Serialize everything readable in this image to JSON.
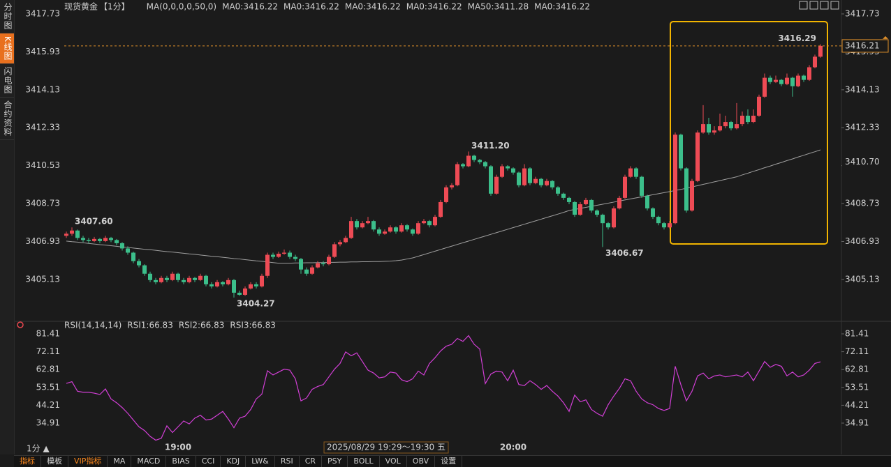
{
  "sidebar": [
    "分时图",
    "K线图",
    "闪电图",
    "合约资料"
  ],
  "toolbar": [
    "指标",
    "模板",
    "VIP指标",
    "MA",
    "MACD",
    "BIAS",
    "CCI",
    "KDJ",
    "LW&",
    "RSI",
    "CR",
    "PSY",
    "BOLL",
    "VOL",
    "OBV",
    "设置"
  ],
  "chart_data": {
    "type": "candlestick",
    "title": "现货黄金",
    "period": "【1分】",
    "indicator_header": [
      {
        "text": "MA(0,0,0,0,50,0)",
        "color": "#d8d8d8"
      },
      {
        "text": "MA0:3416.22",
        "color": "#d8d8d8"
      },
      {
        "text": "MA0:3416.22",
        "color": "#e6c619"
      },
      {
        "text": "MA0:3416.22",
        "color": "#d23fd6"
      },
      {
        "text": "MA0:3416.22",
        "color": "#35c24a"
      },
      {
        "text": "MA50:3411.28",
        "color": "#9a9a9a"
      },
      {
        "text": "MA0:3416.22",
        "color": "#e8474f"
      }
    ],
    "period_label": "1分 ▲",
    "crosshair_time": "2025/08/29 19:29～19:30 五",
    "categories": [
      null,
      null,
      null,
      null,
      null,
      null,
      null,
      null,
      null,
      null,
      null,
      null,
      null,
      null,
      null,
      null,
      null,
      null,
      null,
      null,
      "19:00",
      null,
      null,
      null,
      null,
      null,
      null,
      null,
      null,
      null,
      null,
      null,
      null,
      null,
      null,
      null,
      null,
      null,
      null,
      null,
      null,
      null,
      null,
      null,
      null,
      null,
      null,
      null,
      null,
      null,
      null,
      null,
      null,
      null,
      null,
      null,
      null,
      null,
      null,
      null,
      null,
      null,
      null,
      null,
      null,
      null,
      null,
      null,
      null,
      null,
      null,
      null,
      null,
      null,
      null,
      null,
      null,
      null,
      null,
      null,
      "20:00",
      null,
      null,
      null,
      null,
      null,
      null,
      null,
      null,
      null,
      null,
      null,
      null,
      null,
      null,
      null,
      null,
      null,
      null,
      null,
      null,
      null,
      null,
      null,
      null,
      null,
      null,
      null,
      null,
      null,
      null,
      null,
      null,
      null,
      null,
      null,
      null,
      null,
      null,
      null,
      null,
      null,
      null,
      null,
      null,
      null,
      null,
      null,
      null,
      null,
      null,
      null,
      null,
      null,
      null,
      null
    ],
    "candles": [
      [
        3407.2,
        3407.4,
        3407.1,
        3407.3
      ],
      [
        3407.3,
        3407.6,
        3407.2,
        3407.45
      ],
      [
        3407.45,
        3407.5,
        3407.0,
        3407.1
      ],
      [
        3407.1,
        3407.2,
        3406.9,
        3407.0
      ],
      [
        3407.0,
        3407.1,
        3406.85,
        3406.95
      ],
      [
        3406.95,
        3407.15,
        3406.9,
        3407.05
      ],
      [
        3407.05,
        3407.1,
        3406.85,
        3406.95
      ],
      [
        3406.95,
        3407.2,
        3406.9,
        3407.1
      ],
      [
        3407.1,
        3407.15,
        3406.9,
        3407.0
      ],
      [
        3407.0,
        3407.05,
        3406.75,
        3406.85
      ],
      [
        3406.85,
        3406.9,
        3406.5,
        3406.6
      ],
      [
        3406.6,
        3406.7,
        3406.3,
        3406.4
      ],
      [
        3406.4,
        3406.45,
        3405.9,
        3406.0
      ],
      [
        3406.0,
        3406.1,
        3405.7,
        3405.8
      ],
      [
        3405.8,
        3405.85,
        3405.3,
        3405.4
      ],
      [
        3405.4,
        3405.5,
        3405.0,
        3405.1
      ],
      [
        3405.1,
        3405.2,
        3404.9,
        3405.0
      ],
      [
        3405.0,
        3405.3,
        3404.95,
        3405.2
      ],
      [
        3405.2,
        3405.3,
        3405.0,
        3405.1
      ],
      [
        3405.1,
        3405.5,
        3405.05,
        3405.4
      ],
      [
        3405.4,
        3405.45,
        3405.0,
        3405.1
      ],
      [
        3405.1,
        3405.2,
        3404.9,
        3405.0
      ],
      [
        3405.0,
        3405.3,
        3404.95,
        3405.2
      ],
      [
        3405.2,
        3405.25,
        3405.0,
        3405.1
      ],
      [
        3405.1,
        3405.4,
        3405.05,
        3405.3
      ],
      [
        3405.3,
        3405.35,
        3404.8,
        3404.9
      ],
      [
        3404.9,
        3405.0,
        3404.7,
        3404.8
      ],
      [
        3404.8,
        3405.1,
        3404.75,
        3405.0
      ],
      [
        3405.0,
        3405.05,
        3404.8,
        3404.9
      ],
      [
        3404.9,
        3405.2,
        3404.85,
        3405.1
      ],
      [
        3405.1,
        3405.15,
        3404.27,
        3404.5
      ],
      [
        3404.5,
        3404.6,
        3404.35,
        3404.4
      ],
      [
        3404.4,
        3404.8,
        3404.35,
        3404.7
      ],
      [
        3404.7,
        3405.0,
        3404.65,
        3404.9
      ],
      [
        3404.9,
        3405.0,
        3404.7,
        3404.8
      ],
      [
        3404.8,
        3405.4,
        3404.75,
        3405.3
      ],
      [
        3405.3,
        3406.4,
        3405.2,
        3406.3
      ],
      [
        3406.3,
        3406.4,
        3406.1,
        3406.2
      ],
      [
        3406.2,
        3406.45,
        3406.15,
        3406.35
      ],
      [
        3406.35,
        3406.55,
        3406.3,
        3406.4
      ],
      [
        3406.4,
        3406.5,
        3406.1,
        3406.2
      ],
      [
        3406.2,
        3406.3,
        3406.0,
        3406.1
      ],
      [
        3406.1,
        3406.15,
        3405.4,
        3405.6
      ],
      [
        3405.6,
        3405.7,
        3405.3,
        3405.4
      ],
      [
        3405.4,
        3405.8,
        3405.35,
        3405.7
      ],
      [
        3405.7,
        3406.0,
        3405.65,
        3405.9
      ],
      [
        3405.9,
        3406.0,
        3405.75,
        3405.85
      ],
      [
        3405.85,
        3406.3,
        3405.8,
        3406.2
      ],
      [
        3406.2,
        3406.9,
        3406.15,
        3406.8
      ],
      [
        3406.8,
        3407.0,
        3406.7,
        3406.9
      ],
      [
        3406.9,
        3407.2,
        3406.85,
        3407.1
      ],
      [
        3407.1,
        3408.1,
        3407.05,
        3407.9
      ],
      [
        3407.9,
        3408.0,
        3407.5,
        3407.6
      ],
      [
        3407.6,
        3407.9,
        3407.55,
        3407.8
      ],
      [
        3407.8,
        3408.1,
        3407.75,
        3407.9
      ],
      [
        3407.9,
        3407.95,
        3407.4,
        3407.5
      ],
      [
        3407.5,
        3407.6,
        3407.2,
        3407.3
      ],
      [
        3407.3,
        3407.5,
        3407.25,
        3407.4
      ],
      [
        3407.4,
        3407.7,
        3407.35,
        3407.6
      ],
      [
        3407.6,
        3407.65,
        3407.3,
        3407.4
      ],
      [
        3407.4,
        3407.8,
        3407.35,
        3407.7
      ],
      [
        3407.7,
        3407.75,
        3407.4,
        3407.5
      ],
      [
        3407.5,
        3407.55,
        3407.2,
        3407.3
      ],
      [
        3407.3,
        3407.9,
        3407.25,
        3407.8
      ],
      [
        3407.8,
        3408.0,
        3407.75,
        3407.9
      ],
      [
        3407.9,
        3407.95,
        3407.6,
        3407.7
      ],
      [
        3407.7,
        3408.2,
        3407.65,
        3408.1
      ],
      [
        3408.1,
        3408.9,
        3408.05,
        3408.8
      ],
      [
        3408.8,
        3409.6,
        3408.75,
        3409.5
      ],
      [
        3409.5,
        3409.7,
        3409.4,
        3409.6
      ],
      [
        3409.6,
        3410.7,
        3409.55,
        3410.6
      ],
      [
        3410.6,
        3410.65,
        3410.4,
        3410.5
      ],
      [
        3410.5,
        3411.2,
        3410.45,
        3411.0
      ],
      [
        3411.0,
        3411.05,
        3410.7,
        3410.8
      ],
      [
        3410.8,
        3410.85,
        3410.6,
        3410.7
      ],
      [
        3410.7,
        3410.75,
        3410.4,
        3410.5
      ],
      [
        3410.5,
        3410.55,
        3409.1,
        3409.2
      ],
      [
        3409.2,
        3410.1,
        3409.15,
        3410.0
      ],
      [
        3410.0,
        3410.6,
        3409.95,
        3410.5
      ],
      [
        3410.5,
        3410.55,
        3410.3,
        3410.4
      ],
      [
        3410.4,
        3410.45,
        3410.1,
        3410.2
      ],
      [
        3410.2,
        3410.25,
        3409.5,
        3409.6
      ],
      [
        3409.6,
        3410.6,
        3409.55,
        3410.4
      ],
      [
        3410.4,
        3410.45,
        3409.6,
        3409.7
      ],
      [
        3409.7,
        3410.0,
        3409.65,
        3409.9
      ],
      [
        3409.9,
        3409.95,
        3409.5,
        3409.6
      ],
      [
        3409.6,
        3409.9,
        3409.55,
        3409.8
      ],
      [
        3409.8,
        3409.85,
        3409.4,
        3409.5
      ],
      [
        3409.5,
        3409.55,
        3409.1,
        3409.2
      ],
      [
        3409.2,
        3409.25,
        3408.9,
        3409.0
      ],
      [
        3409.0,
        3409.05,
        3408.7,
        3408.8
      ],
      [
        3408.8,
        3408.85,
        3408.1,
        3408.2
      ],
      [
        3408.2,
        3408.8,
        3408.15,
        3408.7
      ],
      [
        3408.7,
        3409.0,
        3408.65,
        3408.9
      ],
      [
        3408.9,
        3408.95,
        3408.3,
        3408.4
      ],
      [
        3408.4,
        3408.45,
        3408.1,
        3408.2
      ],
      [
        3408.2,
        3408.25,
        3406.67,
        3407.8
      ],
      [
        3407.8,
        3407.85,
        3407.5,
        3407.6
      ],
      [
        3407.6,
        3408.6,
        3407.55,
        3408.5
      ],
      [
        3408.5,
        3409.1,
        3408.45,
        3409.0
      ],
      [
        3409.0,
        3410.1,
        3408.95,
        3410.0
      ],
      [
        3410.0,
        3410.5,
        3409.95,
        3410.4
      ],
      [
        3410.4,
        3410.45,
        3409.9,
        3410.0
      ],
      [
        3410.0,
        3410.05,
        3409.0,
        3409.1
      ],
      [
        3409.1,
        3409.15,
        3408.4,
        3408.5
      ],
      [
        3408.5,
        3408.55,
        3408.0,
        3408.1
      ],
      [
        3408.1,
        3408.15,
        3407.7,
        3407.8
      ],
      [
        3407.8,
        3407.85,
        3407.5,
        3407.6
      ],
      [
        3407.6,
        3407.9,
        3407.55,
        3407.8
      ],
      [
        3407.8,
        3412.1,
        3407.75,
        3412.0
      ],
      [
        3412.0,
        3412.05,
        3410.3,
        3410.4
      ],
      [
        3410.4,
        3410.45,
        3408.3,
        3408.4
      ],
      [
        3408.4,
        3409.9,
        3408.35,
        3409.8
      ],
      [
        3409.8,
        3412.2,
        3409.75,
        3412.1
      ],
      [
        3412.1,
        3413.4,
        3412.05,
        3412.5
      ],
      [
        3412.5,
        3412.8,
        3412.0,
        3412.1
      ],
      [
        3412.1,
        3412.4,
        3412.0,
        3412.2
      ],
      [
        3412.2,
        3413.0,
        3412.15,
        3412.4
      ],
      [
        3412.4,
        3412.9,
        3412.3,
        3412.6
      ],
      [
        3412.6,
        3412.65,
        3412.2,
        3412.3
      ],
      [
        3412.3,
        3413.5,
        3412.25,
        3412.5
      ],
      [
        3412.5,
        3413.1,
        3412.4,
        3412.9
      ],
      [
        3412.9,
        3413.2,
        3412.5,
        3412.6
      ],
      [
        3412.6,
        3413.2,
        3412.55,
        3412.9
      ],
      [
        3412.9,
        3413.9,
        3412.85,
        3413.8
      ],
      [
        3413.8,
        3414.9,
        3413.75,
        3414.7
      ],
      [
        3414.7,
        3414.8,
        3414.4,
        3414.5
      ],
      [
        3414.5,
        3414.8,
        3414.45,
        3414.6
      ],
      [
        3414.6,
        3414.65,
        3414.3,
        3414.4
      ],
      [
        3414.4,
        3414.9,
        3414.35,
        3414.7
      ],
      [
        3414.7,
        3414.75,
        3413.8,
        3414.3
      ],
      [
        3414.3,
        3414.9,
        3414.25,
        3414.8
      ],
      [
        3414.8,
        3414.85,
        3414.5,
        3414.6
      ],
      [
        3414.6,
        3415.3,
        3414.55,
        3415.2
      ],
      [
        3415.2,
        3415.8,
        3415.15,
        3415.7
      ],
      [
        3415.7,
        3416.29,
        3415.65,
        3416.21
      ]
    ],
    "up_color": "#ee4b55",
    "down_color": "#3cbf8b",
    "ylim": [
      3403.34,
      3418.06
    ],
    "yticks": [
      3417.73,
      3415.93,
      3414.13,
      3412.33,
      3410.53,
      3408.73,
      3406.93,
      3405.13
    ],
    "extreme_labels": [
      "3407.60",
      "3404.27",
      "3411.20",
      "3406.67",
      "3416.29"
    ],
    "price_marker": {
      "value": 3410.7,
      "label": "3410.70"
    },
    "ma50": {
      "color": "#a0a0a0",
      "values": [
        3406.95,
        3406.92,
        3406.9,
        3406.87,
        3406.84,
        3406.81,
        3406.78,
        3406.76,
        3406.73,
        3406.7,
        3406.67,
        3406.65,
        3406.62,
        3406.59,
        3406.56,
        3406.54,
        3406.51,
        3406.48,
        3406.45,
        3406.43,
        3406.4,
        3406.37,
        3406.34,
        3406.32,
        3406.29,
        3406.26,
        3406.23,
        3406.21,
        3406.18,
        3406.15,
        3406.12,
        3406.1,
        3406.07,
        3406.04,
        3406.01,
        3405.99,
        3405.96,
        3405.93,
        3405.9,
        3405.9,
        3405.9,
        3405.91,
        3405.91,
        3405.92,
        3405.92,
        3405.93,
        3405.93,
        3405.94,
        3405.94,
        3405.95,
        3405.95,
        3405.96,
        3405.96,
        3405.97,
        3405.97,
        3405.98,
        3405.98,
        3405.99,
        3406.0,
        3406.02,
        3406.05,
        3406.1,
        3406.15,
        3406.23,
        3406.31,
        3406.39,
        3406.47,
        3406.55,
        3406.63,
        3406.71,
        3406.79,
        3406.87,
        3406.95,
        3407.03,
        3407.11,
        3407.19,
        3407.27,
        3407.35,
        3407.43,
        3407.51,
        3407.59,
        3407.67,
        3407.75,
        3407.83,
        3407.91,
        3407.99,
        3408.07,
        3408.15,
        3408.23,
        3408.31,
        3408.4,
        3408.45,
        3408.5,
        3408.55,
        3408.6,
        3408.65,
        3408.7,
        3408.75,
        3408.8,
        3408.85,
        3408.9,
        3408.95,
        3409.0,
        3409.05,
        3409.1,
        3409.15,
        3409.2,
        3409.25,
        3409.3,
        3409.35,
        3409.4,
        3409.46,
        3409.52,
        3409.58,
        3409.64,
        3409.7,
        3409.76,
        3409.82,
        3409.88,
        3409.94,
        3410.0,
        3410.09,
        3410.17,
        3410.26,
        3410.34,
        3410.43,
        3410.51,
        3410.6,
        3410.68,
        3410.77,
        3410.85,
        3410.94,
        3411.02,
        3411.11,
        3411.19,
        3411.28
      ]
    },
    "rsi": {
      "header": [
        {
          "text": "RSI(14,14,14)",
          "color": "#d8d8d8"
        },
        {
          "text": "RSI1:66.83",
          "color": "#d8d8d8"
        },
        {
          "text": "RSI2:66.83",
          "color": "#e6c619"
        },
        {
          "text": "RSI3:66.83",
          "color": "#d23fd6"
        }
      ],
      "color": "#d23fd6",
      "ylim": [
        24.74,
        84.68
      ],
      "yticks": [
        81.41,
        72.11,
        62.81,
        53.51,
        44.21,
        34.91
      ],
      "values": [
        55.6,
        56.5,
        51.5,
        51.0,
        51.0,
        50.5,
        49.8,
        52.7,
        47.5,
        45.5,
        43.0,
        40.0,
        36.5,
        33.0,
        31.0,
        28.0,
        26.0,
        27.0,
        33.5,
        30.0,
        33.0,
        36.0,
        34.5,
        37.5,
        39.0,
        36.5,
        37.0,
        39.0,
        41.0,
        37.0,
        32.5,
        37.5,
        38.5,
        42.0,
        47.5,
        50.0,
        62.2,
        60.0,
        61.5,
        63.0,
        62.5,
        58.0,
        46.5,
        48.0,
        52.5,
        54.0,
        55.0,
        59.0,
        63.0,
        66.0,
        72.0,
        70.0,
        71.5,
        67.0,
        62.5,
        61.0,
        58.5,
        59.0,
        61.5,
        61.0,
        57.5,
        56.5,
        58.0,
        62.0,
        60.0,
        66.0,
        69.0,
        72.5,
        75.0,
        76.0,
        79.0,
        77.5,
        80.5,
        76.0,
        73.5,
        55.5,
        60.5,
        62.0,
        61.5,
        57.0,
        62.5,
        55.0,
        54.5,
        57.0,
        55.0,
        52.5,
        54.5,
        51.5,
        49.0,
        45.5,
        41.0,
        49.5,
        46.0,
        47.0,
        42.0,
        40.0,
        38.5,
        44.5,
        49.0,
        53.0,
        58.0,
        57.0,
        51.5,
        47.5,
        45.5,
        44.5,
        42.5,
        41.5,
        42.5,
        64.5,
        55.0,
        46.5,
        51.5,
        59.5,
        61.0,
        58.0,
        59.5,
        60.0,
        59.0,
        59.5,
        60.0,
        59.0,
        61.5,
        57.0,
        62.0,
        67.0,
        64.0,
        65.5,
        64.5,
        59.5,
        61.5,
        59.0,
        60.0,
        62.5,
        66.0,
        66.83
      ]
    }
  }
}
